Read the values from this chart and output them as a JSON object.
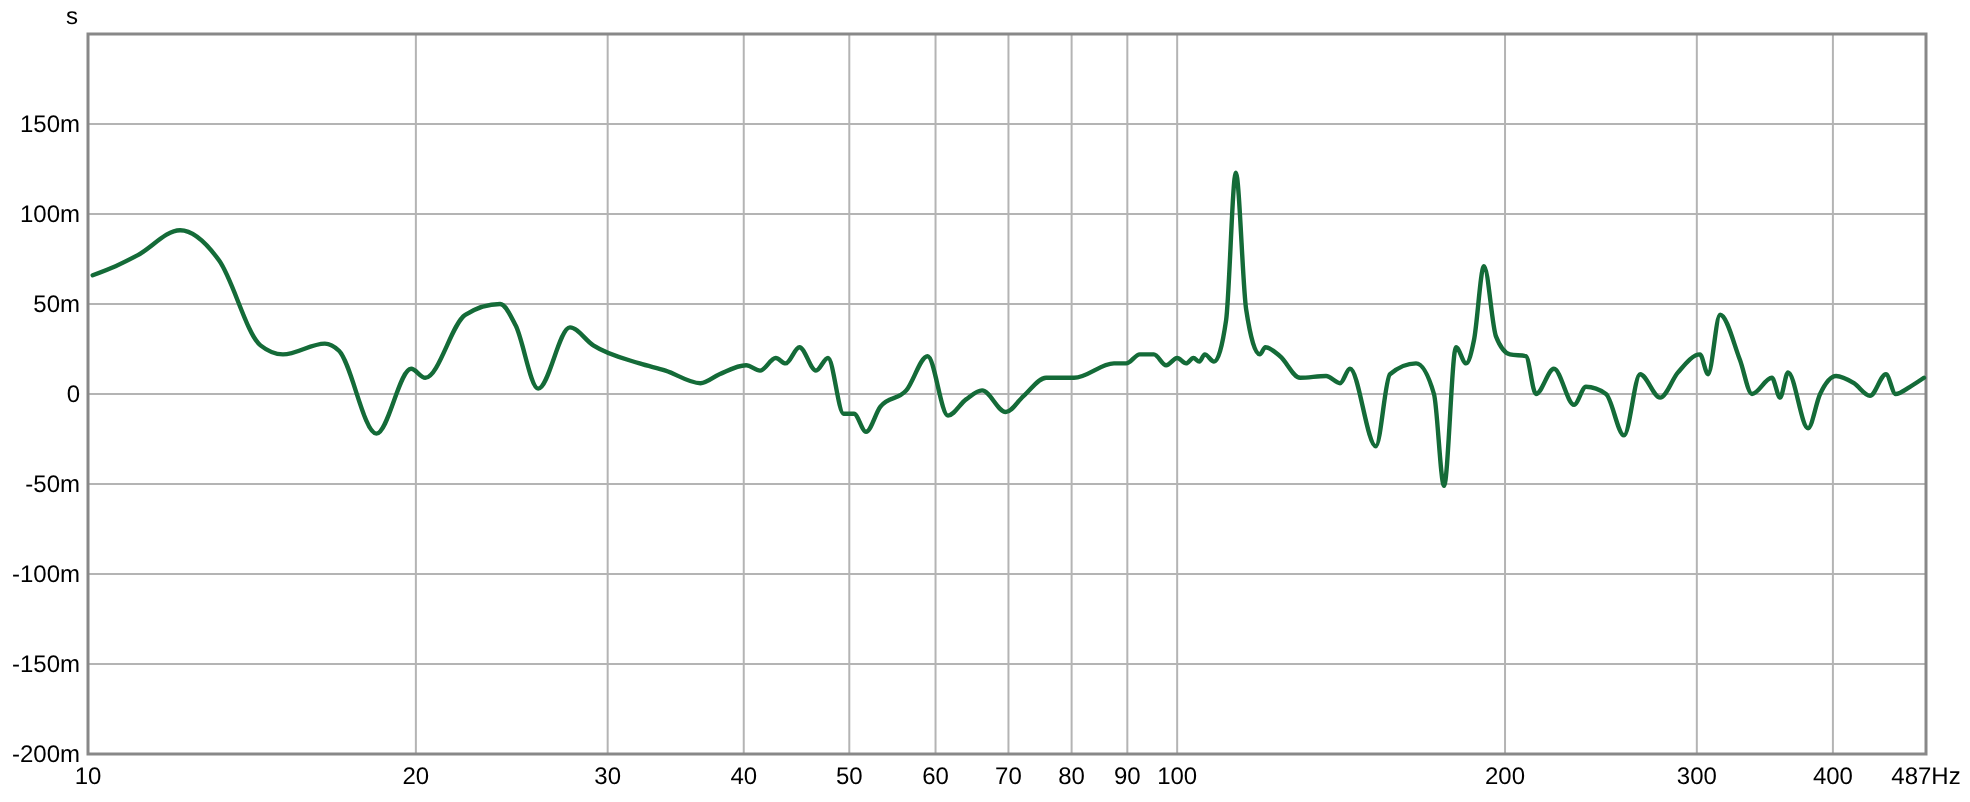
{
  "chart_data": {
    "type": "line",
    "ylabel": "s",
    "log": "x",
    "grid": true,
    "marker": "none",
    "line_style": "solid",
    "xlim": [
      10,
      487
    ],
    "xticks": [
      10,
      20,
      30,
      40,
      50,
      60,
      70,
      80,
      90,
      100,
      200,
      300,
      400,
      {
        "value": 487,
        "label": "487Hz"
      }
    ],
    "ylim": [
      -200,
      200
    ],
    "yticks": [
      {
        "value": -200,
        "label": "-200m"
      },
      {
        "value": -150,
        "label": "-150m"
      },
      {
        "value": -100,
        "label": "-100m"
      },
      {
        "value": -50,
        "label": "-50m"
      },
      0,
      {
        "value": 50,
        "label": "50m"
      },
      {
        "value": 100,
        "label": "100m"
      },
      {
        "value": 150,
        "label": "150m"
      }
    ],
    "series": [
      {
        "color": "#146b38",
        "x": [
          10.1,
          10.6,
          11.1,
          12.15,
          13.2,
          14.4,
          15.1,
          16.5,
          17.0,
          18.4,
          19.8,
          20.4,
          22.2,
          23.9,
          24.7,
          25.9,
          27.7,
          29.1,
          32.1,
          33.9,
          36.5,
          38.0,
          40.2,
          41.4,
          42.8,
          43.7,
          45.0,
          46.6,
          47.8,
          49.4,
          50.5,
          51.8,
          53.4,
          56.4,
          59.0,
          61.6,
          64.0,
          66.2,
          69.6,
          72.3,
          75.8,
          80.4,
          87.5,
          89.8,
          92.4,
          95.2,
          97.7,
          100,
          101.9,
          103.5,
          104.8,
          106,
          108.1,
          110.9,
          113.2,
          115.7,
          119.1,
          120.5,
          124.3,
          129.7,
          137.0,
          141.1,
          144.1,
          152.2,
          156.8,
          165.7,
          172.1,
          175.8,
          180.3,
          184.2,
          187.3,
          191.3,
          196.2,
          202.1,
          209.0,
          213.5,
          221.8,
          231.4,
          237.3,
          247.6,
          257.2,
          266.1,
          277.6,
          288.3,
          302.0,
          307.2,
          315.1,
          328.6,
          337.1,
          351.6,
          357.7,
          363.8,
          379.5,
          389.3,
          402.7,
          418.2,
          432.6,
          447.5,
          456.7,
          470.8,
          484.9
        ],
        "values": [
          66,
          71,
          77,
          91,
          74,
          27,
          22,
          28,
          24,
          -22,
          14,
          9,
          44,
          50,
          38,
          3,
          37,
          27,
          17,
          13,
          6,
          11,
          16,
          13,
          20,
          17,
          26,
          13,
          20,
          -11,
          -11,
          -21,
          -7,
          2,
          21,
          -12,
          -3,
          2,
          -10,
          -1,
          9,
          9,
          17,
          17,
          22,
          22,
          16,
          20,
          17,
          20,
          18,
          22,
          18,
          41,
          123,
          47,
          22,
          26,
          21,
          9,
          10,
          6,
          14,
          -29,
          11,
          17,
          0,
          -51,
          26,
          17,
          30,
          71,
          32,
          22,
          21,
          0,
          14,
          -6,
          4,
          0,
          -23,
          11,
          -2,
          12,
          22,
          11,
          44,
          19,
          0,
          9,
          -2,
          12,
          -19,
          0,
          10,
          6,
          -1,
          11,
          0,
          4,
          9
        ]
      }
    ]
  }
}
